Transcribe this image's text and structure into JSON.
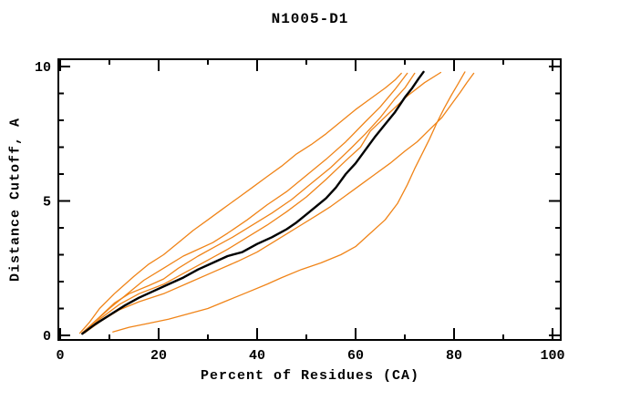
{
  "chart_data": {
    "type": "line",
    "title": "N1005-D1",
    "xlabel": "Percent of Residues (CA)",
    "ylabel": "Distance Cutoff, A",
    "xlim": [
      0,
      100
    ],
    "ylim": [
      0,
      10
    ],
    "x_major_ticks": [
      0,
      20,
      40,
      60,
      80,
      100
    ],
    "x_major_labels": [
      "0",
      "20",
      "40",
      "60",
      "80",
      "100"
    ],
    "x_minor_ticks": [
      10,
      30,
      50,
      70,
      90
    ],
    "y_major_ticks": [
      0,
      5,
      10
    ],
    "y_major_labels": [
      "0",
      "5",
      "10"
    ],
    "y_minor_ticks": [
      1,
      2,
      3,
      4,
      6,
      7,
      8,
      9
    ],
    "grid": false,
    "legend": "none",
    "colors": {
      "model_line": "#f08418",
      "reference_line": "#000000",
      "axis": "#000000"
    },
    "series": [
      {
        "id": "orange-1",
        "color": "model_line",
        "width": 1.3,
        "points": [
          [
            4,
            0.08
          ],
          [
            6,
            0.5
          ],
          [
            8,
            1.0
          ],
          [
            11,
            1.55
          ],
          [
            15,
            2.2
          ],
          [
            18,
            2.65
          ],
          [
            21,
            3.0
          ],
          [
            24,
            3.45
          ],
          [
            27,
            3.9
          ],
          [
            30,
            4.3
          ],
          [
            33,
            4.7
          ],
          [
            36,
            5.1
          ],
          [
            39,
            5.5
          ],
          [
            42,
            5.9
          ],
          [
            45,
            6.3
          ],
          [
            48,
            6.75
          ],
          [
            51,
            7.1
          ],
          [
            54,
            7.5
          ],
          [
            57,
            7.95
          ],
          [
            60,
            8.4
          ],
          [
            63,
            8.8
          ],
          [
            66,
            9.2
          ],
          [
            68,
            9.5
          ],
          [
            69.3,
            9.75
          ]
        ]
      },
      {
        "id": "orange-2",
        "color": "model_line",
        "width": 1.3,
        "points": [
          [
            4.5,
            0.08
          ],
          [
            7,
            0.5
          ],
          [
            10,
            1.0
          ],
          [
            13,
            1.45
          ],
          [
            17,
            2.05
          ],
          [
            21,
            2.5
          ],
          [
            25,
            2.95
          ],
          [
            28,
            3.2
          ],
          [
            31,
            3.45
          ],
          [
            34,
            3.8
          ],
          [
            38,
            4.3
          ],
          [
            42,
            4.85
          ],
          [
            46,
            5.35
          ],
          [
            50,
            5.95
          ],
          [
            54,
            6.55
          ],
          [
            58,
            7.2
          ],
          [
            62,
            7.95
          ],
          [
            65,
            8.5
          ],
          [
            68,
            9.15
          ],
          [
            70.5,
            9.75
          ]
        ]
      },
      {
        "id": "orange-3",
        "color": "model_line",
        "width": 1.3,
        "points": [
          [
            4.5,
            0.1
          ],
          [
            7.5,
            0.6
          ],
          [
            11,
            1.2
          ],
          [
            14,
            1.55
          ],
          [
            18,
            1.85
          ],
          [
            21,
            2.1
          ],
          [
            24,
            2.5
          ],
          [
            28,
            2.95
          ],
          [
            31,
            3.25
          ],
          [
            35,
            3.65
          ],
          [
            39,
            4.1
          ],
          [
            43,
            4.55
          ],
          [
            47,
            5.05
          ],
          [
            51,
            5.65
          ],
          [
            55,
            6.25
          ],
          [
            59,
            6.95
          ],
          [
            62,
            7.5
          ],
          [
            65,
            8.1
          ],
          [
            68,
            8.8
          ],
          [
            70,
            9.2
          ],
          [
            72,
            9.75
          ]
        ]
      },
      {
        "id": "orange-4",
        "color": "model_line",
        "width": 1.3,
        "points": [
          [
            5,
            0.1
          ],
          [
            8,
            0.6
          ],
          [
            12,
            1.15
          ],
          [
            16,
            1.55
          ],
          [
            21,
            1.9
          ],
          [
            25,
            2.3
          ],
          [
            30,
            2.8
          ],
          [
            34,
            3.2
          ],
          [
            38,
            3.65
          ],
          [
            42,
            4.1
          ],
          [
            46,
            4.6
          ],
          [
            50,
            5.15
          ],
          [
            54,
            5.8
          ],
          [
            58,
            6.5
          ],
          [
            61,
            7.0
          ],
          [
            63,
            7.6
          ],
          [
            67,
            8.3
          ],
          [
            70.5,
            8.9
          ],
          [
            74,
            9.4
          ],
          [
            77.3,
            9.78
          ]
        ]
      },
      {
        "id": "orange-5",
        "color": "model_line",
        "width": 1.3,
        "points": [
          [
            5,
            0.1
          ],
          [
            8,
            0.5
          ],
          [
            12,
            0.95
          ],
          [
            16,
            1.25
          ],
          [
            21,
            1.55
          ],
          [
            26,
            1.95
          ],
          [
            31,
            2.35
          ],
          [
            36,
            2.75
          ],
          [
            40,
            3.1
          ],
          [
            44,
            3.55
          ],
          [
            48,
            4.0
          ],
          [
            52,
            4.45
          ],
          [
            55,
            4.8
          ],
          [
            58,
            5.2
          ],
          [
            61,
            5.6
          ],
          [
            64,
            6.0
          ],
          [
            67,
            6.4
          ],
          [
            70,
            6.85
          ],
          [
            72.5,
            7.2
          ],
          [
            75,
            7.65
          ],
          [
            77.5,
            8.1
          ],
          [
            79.5,
            8.6
          ],
          [
            81.3,
            9.05
          ],
          [
            82.6,
            9.4
          ],
          [
            84,
            9.75
          ]
        ]
      },
      {
        "id": "orange-6",
        "color": "model_line",
        "width": 1.3,
        "points": [
          [
            10.7,
            0.13
          ],
          [
            14,
            0.3
          ],
          [
            18,
            0.45
          ],
          [
            22,
            0.6
          ],
          [
            26,
            0.8
          ],
          [
            30,
            1.0
          ],
          [
            34,
            1.3
          ],
          [
            38,
            1.6
          ],
          [
            42,
            1.9
          ],
          [
            45,
            2.15
          ],
          [
            49,
            2.45
          ],
          [
            53,
            2.7
          ],
          [
            57,
            3.0
          ],
          [
            60,
            3.3
          ],
          [
            63,
            3.8
          ],
          [
            66,
            4.3
          ],
          [
            68.5,
            4.9
          ],
          [
            70.5,
            5.6
          ],
          [
            72,
            6.2
          ],
          [
            73.5,
            6.75
          ],
          [
            75,
            7.3
          ],
          [
            76.5,
            7.9
          ],
          [
            78,
            8.45
          ],
          [
            79.5,
            8.95
          ],
          [
            80.8,
            9.35
          ],
          [
            82.2,
            9.8
          ]
        ]
      },
      {
        "id": "black-main",
        "color": "reference_line",
        "width": 2.4,
        "points": [
          [
            4.5,
            0.06
          ],
          [
            7,
            0.4
          ],
          [
            10,
            0.75
          ],
          [
            13,
            1.1
          ],
          [
            16,
            1.4
          ],
          [
            19,
            1.65
          ],
          [
            22,
            1.9
          ],
          [
            25,
            2.15
          ],
          [
            28,
            2.45
          ],
          [
            31,
            2.7
          ],
          [
            34,
            2.95
          ],
          [
            37,
            3.1
          ],
          [
            40,
            3.4
          ],
          [
            43,
            3.65
          ],
          [
            46,
            3.95
          ],
          [
            48,
            4.2
          ],
          [
            50,
            4.5
          ],
          [
            52,
            4.8
          ],
          [
            54,
            5.1
          ],
          [
            56,
            5.5
          ],
          [
            58,
            6.0
          ],
          [
            60,
            6.4
          ],
          [
            62,
            6.9
          ],
          [
            64,
            7.4
          ],
          [
            66,
            7.85
          ],
          [
            68,
            8.3
          ],
          [
            70,
            8.85
          ],
          [
            71.5,
            9.2
          ],
          [
            72.8,
            9.55
          ],
          [
            73.8,
            9.8
          ]
        ]
      }
    ]
  }
}
